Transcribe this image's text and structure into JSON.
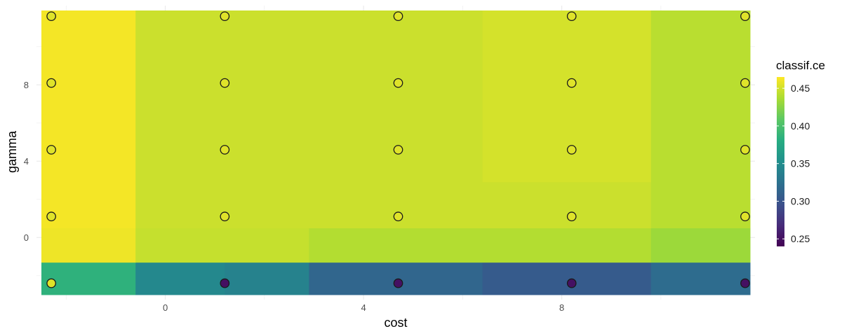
{
  "chart_data": {
    "type": "heatmap",
    "title": "",
    "xlabel": "cost",
    "ylabel": "gamma",
    "x_ticks": [
      "0",
      "4",
      "8"
    ],
    "y_ticks": [
      "0",
      "4",
      "8"
    ],
    "grid": true,
    "legend": {
      "title": "classif.ce",
      "position": "right",
      "range": [
        0.24,
        0.465
      ],
      "ticks": [
        "0.25",
        "0.30",
        "0.35",
        "0.40",
        "0.45"
      ]
    },
    "cells": [
      {
        "x": [
          -2.5,
          -0.6
        ],
        "y": [
          -3.0,
          -1.3
        ],
        "value": 0.385
      },
      {
        "x": [
          -0.6,
          1.2
        ],
        "y": [
          -3.0,
          -1.3
        ],
        "value": 0.345
      },
      {
        "x": [
          1.2,
          2.9
        ],
        "y": [
          -3.0,
          -1.3
        ],
        "value": 0.34
      },
      {
        "x": [
          2.9,
          6.4
        ],
        "y": [
          -3.0,
          -1.3
        ],
        "value": 0.315
      },
      {
        "x": [
          6.4,
          9.8
        ],
        "y": [
          -3.0,
          -1.3
        ],
        "value": 0.305
      },
      {
        "x": [
          9.8,
          11.8
        ],
        "y": [
          -3.0,
          -1.3
        ],
        "value": 0.32
      },
      {
        "x": [
          -2.5,
          -0.6
        ],
        "y": [
          -1.3,
          0.5
        ],
        "value": 0.46
      },
      {
        "x": [
          -0.6,
          2.9
        ],
        "y": [
          -1.3,
          0.5
        ],
        "value": 0.446
      },
      {
        "x": [
          2.9,
          9.8
        ],
        "y": [
          -1.3,
          0.5
        ],
        "value": 0.44
      },
      {
        "x": [
          9.8,
          11.8
        ],
        "y": [
          -1.3,
          0.5
        ],
        "value": 0.432
      },
      {
        "x": [
          -2.5,
          -0.6
        ],
        "y": [
          0.5,
          11.9
        ],
        "value": 0.462
      },
      {
        "x": [
          -0.6,
          6.4
        ],
        "y": [
          0.5,
          11.9
        ],
        "value": 0.448
      },
      {
        "x": [
          6.4,
          9.8
        ],
        "y": [
          2.9,
          11.9
        ],
        "value": 0.451
      },
      {
        "x": [
          6.4,
          9.8
        ],
        "y": [
          0.5,
          2.9
        ],
        "value": 0.448
      },
      {
        "x": [
          9.8,
          11.8
        ],
        "y": [
          0.5,
          11.9
        ],
        "value": 0.442
      }
    ],
    "points": [
      {
        "x": -2.3,
        "y": -2.4,
        "value": 0.455
      },
      {
        "x": 1.2,
        "y": -2.4,
        "value": 0.25
      },
      {
        "x": 4.7,
        "y": -2.4,
        "value": 0.25
      },
      {
        "x": 8.2,
        "y": -2.4,
        "value": 0.25
      },
      {
        "x": 11.7,
        "y": -2.4,
        "value": 0.25
      },
      {
        "x": -2.3,
        "y": 1.1,
        "value": 0.455
      },
      {
        "x": 1.2,
        "y": 1.1,
        "value": 0.455
      },
      {
        "x": 4.7,
        "y": 1.1,
        "value": 0.455
      },
      {
        "x": 8.2,
        "y": 1.1,
        "value": 0.455
      },
      {
        "x": 11.7,
        "y": 1.1,
        "value": 0.455
      },
      {
        "x": -2.3,
        "y": 4.6,
        "value": 0.455
      },
      {
        "x": 1.2,
        "y": 4.6,
        "value": 0.455
      },
      {
        "x": 4.7,
        "y": 4.6,
        "value": 0.455
      },
      {
        "x": 8.2,
        "y": 4.6,
        "value": 0.455
      },
      {
        "x": 11.7,
        "y": 4.6,
        "value": 0.455
      },
      {
        "x": -2.3,
        "y": 8.1,
        "value": 0.455
      },
      {
        "x": 1.2,
        "y": 8.1,
        "value": 0.455
      },
      {
        "x": 4.7,
        "y": 8.1,
        "value": 0.455
      },
      {
        "x": 8.2,
        "y": 8.1,
        "value": 0.455
      },
      {
        "x": 11.7,
        "y": 8.1,
        "value": 0.455
      },
      {
        "x": -2.3,
        "y": 11.6,
        "value": 0.455
      },
      {
        "x": 1.2,
        "y": 11.6,
        "value": 0.455
      },
      {
        "x": 4.7,
        "y": 11.6,
        "value": 0.455
      },
      {
        "x": 8.2,
        "y": 11.6,
        "value": 0.455
      },
      {
        "x": 11.7,
        "y": 11.6,
        "value": 0.455
      }
    ]
  }
}
